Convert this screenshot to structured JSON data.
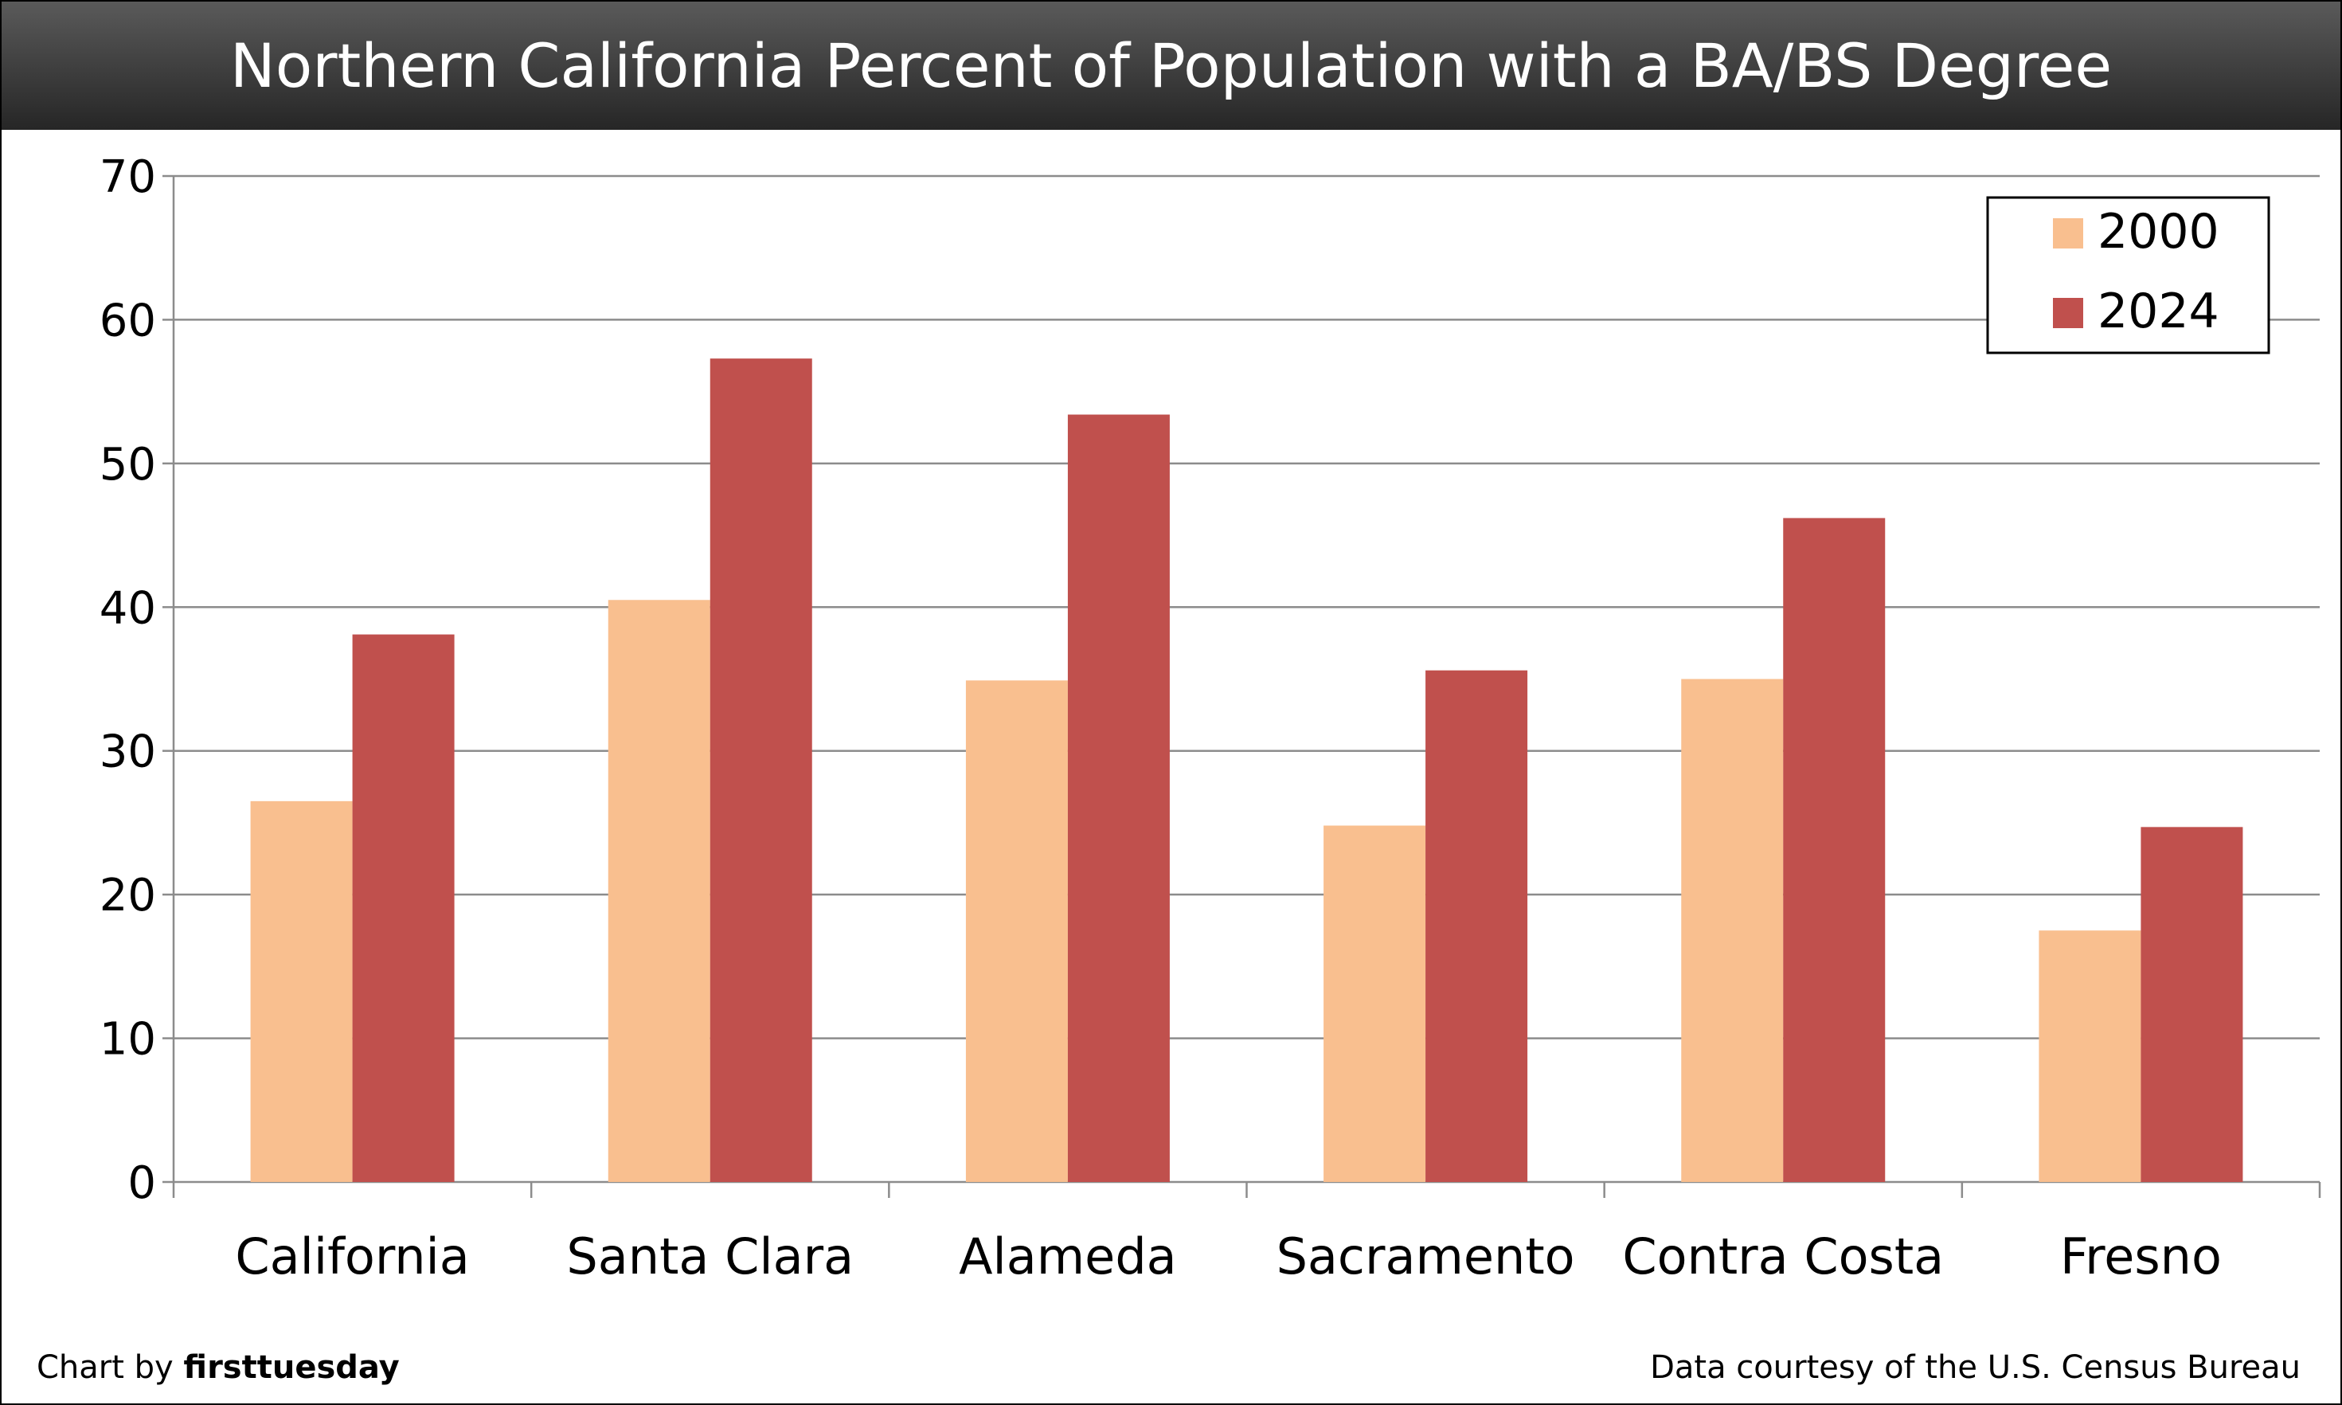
{
  "chart_data": {
    "type": "bar",
    "title": "Northern California Percent of Population with a BA/BS Degree",
    "xlabel": "",
    "ylabel": "",
    "ylim": [
      0,
      70
    ],
    "yticks": [
      0,
      10,
      20,
      30,
      40,
      50,
      60,
      70
    ],
    "grid": true,
    "legend_position": "top-right",
    "categories": [
      "California",
      "Santa Clara",
      "Alameda",
      "Sacramento",
      "Contra Costa",
      "Fresno"
    ],
    "series": [
      {
        "name": "2000",
        "color": "#F9BF8F",
        "values": [
          26.5,
          40.5,
          34.9,
          24.8,
          35.0,
          17.5
        ]
      },
      {
        "name": "2024",
        "color": "#C0504D",
        "values": [
          38.1,
          57.3,
          53.4,
          35.6,
          46.2,
          24.7
        ]
      }
    ]
  },
  "footer": {
    "credit_prefix": "Chart by ",
    "credit_brand": "firsttuesday",
    "source": "Data courtesy of the U.S. Census Bureau"
  }
}
